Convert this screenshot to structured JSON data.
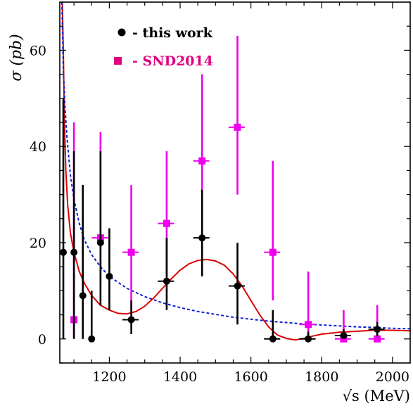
{
  "chart_data": {
    "type": "scatter",
    "title": "",
    "xlabel": "√s (MeV)",
    "ylabel": "σ (pb)",
    "xlim": [
      1060,
      2050
    ],
    "ylim": [
      -5,
      70
    ],
    "xticks": [
      1200,
      1400,
      1600,
      1800,
      2000
    ],
    "yticks": [
      0,
      20,
      40,
      60
    ],
    "grid": false,
    "legend_position": "top-left",
    "series": [
      {
        "name": "- this work",
        "color": "#000000",
        "marker": "circle",
        "points": [
          {
            "x": 1070,
            "y": 18,
            "xerr": 0,
            "ylo": 0,
            "yhi": 50
          },
          {
            "x": 1100,
            "y": 18,
            "xerr": 0,
            "ylo": 0,
            "yhi": 39
          },
          {
            "x": 1125,
            "y": 9,
            "xerr": 0,
            "ylo": 0,
            "yhi": 32
          },
          {
            "x": 1150,
            "y": 0,
            "xerr": 0,
            "ylo": 0,
            "yhi": 10
          },
          {
            "x": 1175,
            "y": 20,
            "xerr": 0,
            "ylo": 7,
            "yhi": 39
          },
          {
            "x": 1200,
            "y": 13,
            "xerr": 0,
            "ylo": 6,
            "yhi": 23
          },
          {
            "x": 1262,
            "y": 4,
            "xerr": 25,
            "ylo": 1,
            "yhi": 8
          },
          {
            "x": 1362,
            "y": 12,
            "xerr": 25,
            "ylo": 6,
            "yhi": 21
          },
          {
            "x": 1462,
            "y": 21,
            "xerr": 25,
            "ylo": 13,
            "yhi": 31
          },
          {
            "x": 1562,
            "y": 11,
            "xerr": 25,
            "ylo": 3,
            "yhi": 20
          },
          {
            "x": 1662,
            "y": 0,
            "xerr": 25,
            "ylo": 0,
            "yhi": 6
          },
          {
            "x": 1762,
            "y": 0,
            "xerr": 25,
            "ylo": 0,
            "yhi": 1.5
          },
          {
            "x": 1862,
            "y": 0.7,
            "xerr": 25,
            "ylo": 0,
            "yhi": 2
          },
          {
            "x": 1957,
            "y": 2,
            "xerr": 25,
            "ylo": 0.5,
            "yhi": 3.5
          }
        ]
      },
      {
        "name": "- SND2014",
        "color": "#ee00ee",
        "marker": "square",
        "legend_color": "#e0007f",
        "points": [
          {
            "x": 1100,
            "y": 4,
            "xerr": 0,
            "ylo": 0.5,
            "yhi": 45
          },
          {
            "x": 1175,
            "y": 21,
            "xerr": 25,
            "ylo": 11,
            "yhi": 43
          },
          {
            "x": 1262,
            "y": 18,
            "xerr": 25,
            "ylo": 6,
            "yhi": 32
          },
          {
            "x": 1362,
            "y": 24,
            "xerr": 25,
            "ylo": 13,
            "yhi": 39
          },
          {
            "x": 1462,
            "y": 37,
            "xerr": 25,
            "ylo": 22,
            "yhi": 55
          },
          {
            "x": 1562,
            "y": 44,
            "xerr": 25,
            "ylo": 30,
            "yhi": 63
          },
          {
            "x": 1662,
            "y": 18,
            "xerr": 25,
            "ylo": 8,
            "yhi": 37
          },
          {
            "x": 1762,
            "y": 3,
            "xerr": 25,
            "ylo": 0,
            "yhi": 14
          },
          {
            "x": 1862,
            "y": 0,
            "xerr": 25,
            "ylo": 0,
            "yhi": 6
          },
          {
            "x": 1957,
            "y": 0,
            "xerr": 25,
            "ylo": 0,
            "yhi": 7
          }
        ]
      }
    ],
    "curves": [
      {
        "style": "solid",
        "color": "#dd0000",
        "points": [
          [
            1067,
            70
          ],
          [
            1070,
            60
          ],
          [
            1073,
            45
          ],
          [
            1077,
            35
          ],
          [
            1082,
            28
          ],
          [
            1090,
            22
          ],
          [
            1100,
            18
          ],
          [
            1115,
            14
          ],
          [
            1130,
            11.5
          ],
          [
            1150,
            9
          ],
          [
            1175,
            7
          ],
          [
            1200,
            6
          ],
          [
            1225,
            5.3
          ],
          [
            1250,
            5.2
          ],
          [
            1275,
            5.7
          ],
          [
            1300,
            6.8
          ],
          [
            1325,
            8.5
          ],
          [
            1350,
            10.5
          ],
          [
            1375,
            12.5
          ],
          [
            1400,
            14.3
          ],
          [
            1425,
            15.6
          ],
          [
            1450,
            16.3
          ],
          [
            1475,
            16.5
          ],
          [
            1500,
            16.2
          ],
          [
            1525,
            15.3
          ],
          [
            1550,
            13.5
          ],
          [
            1575,
            11
          ],
          [
            1600,
            8
          ],
          [
            1625,
            5
          ],
          [
            1650,
            2.5
          ],
          [
            1675,
            0.8
          ],
          [
            1700,
            0.1
          ],
          [
            1725,
            -0.2
          ],
          [
            1750,
            0.1
          ],
          [
            1775,
            0.6
          ],
          [
            1800,
            1
          ],
          [
            1850,
            1.4
          ],
          [
            1900,
            1.6
          ],
          [
            1950,
            1.8
          ],
          [
            2000,
            1.8
          ],
          [
            2050,
            1.7
          ]
        ]
      },
      {
        "style": "dashed",
        "color": "#1020d0",
        "points": [
          [
            1066,
            70
          ],
          [
            1070,
            56
          ],
          [
            1075,
            48
          ],
          [
            1080,
            42
          ],
          [
            1090,
            34
          ],
          [
            1100,
            29
          ],
          [
            1115,
            24
          ],
          [
            1130,
            20.5
          ],
          [
            1150,
            17.5
          ],
          [
            1175,
            15
          ],
          [
            1200,
            13
          ],
          [
            1250,
            10.5
          ],
          [
            1300,
            8.8
          ],
          [
            1350,
            7.5
          ],
          [
            1400,
            6.5
          ],
          [
            1450,
            5.7
          ],
          [
            1500,
            5.1
          ],
          [
            1550,
            4.5
          ],
          [
            1600,
            4.1
          ],
          [
            1650,
            3.7
          ],
          [
            1700,
            3.4
          ],
          [
            1750,
            3.1
          ],
          [
            1800,
            2.9
          ],
          [
            1850,
            2.7
          ],
          [
            1900,
            2.5
          ],
          [
            1950,
            2.4
          ],
          [
            2000,
            2.2
          ],
          [
            2050,
            2.1
          ]
        ]
      }
    ]
  }
}
